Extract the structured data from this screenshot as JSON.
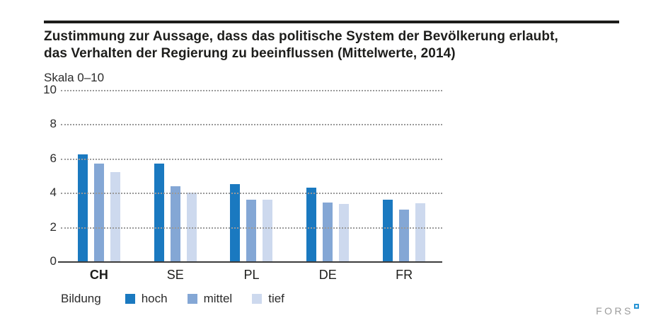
{
  "header": {
    "title_lines": [
      "Zustimmung zur Aussage, dass das politische System der Bevölkerung erlaubt,",
      "das Verhalten der Regierung zu beeinflussen (Mittelwerte, 2014)"
    ]
  },
  "chart_data": {
    "type": "bar",
    "title": "Zustimmung zur Aussage, dass das politische System der Bevölkerung erlaubt, das Verhalten der Regierung zu beeinflussen (Mittelwerte, 2014)",
    "scale_label": "Skala 0–10",
    "categories": [
      "CH",
      "SE",
      "PL",
      "DE",
      "FR"
    ],
    "bold_category": "CH",
    "series": [
      {
        "name": "hoch",
        "color": "#1a79c0",
        "values": [
          6.25,
          5.7,
          4.5,
          4.3,
          3.6
        ]
      },
      {
        "name": "mittel",
        "color": "#84a7d5",
        "values": [
          5.7,
          4.4,
          3.6,
          3.45,
          3.0
        ]
      },
      {
        "name": "tief",
        "color": "#cdd9ee",
        "values": [
          5.2,
          4.0,
          3.6,
          3.35,
          3.4
        ]
      }
    ],
    "legend_title": "Bildung",
    "legend_position": "bottom",
    "ylim": [
      0,
      10
    ],
    "yticks": [
      0,
      2,
      4,
      6,
      8,
      10
    ],
    "grid": "horizontal-dotted",
    "colors": {
      "grid": "#9a9a9a",
      "axis": "#3c3c3c",
      "rule": "#1d1d1b",
      "logo_gray": "#9b9b9b",
      "logo_blue": "#2a95d5"
    }
  },
  "footer": {
    "logo_text": "FORS"
  }
}
